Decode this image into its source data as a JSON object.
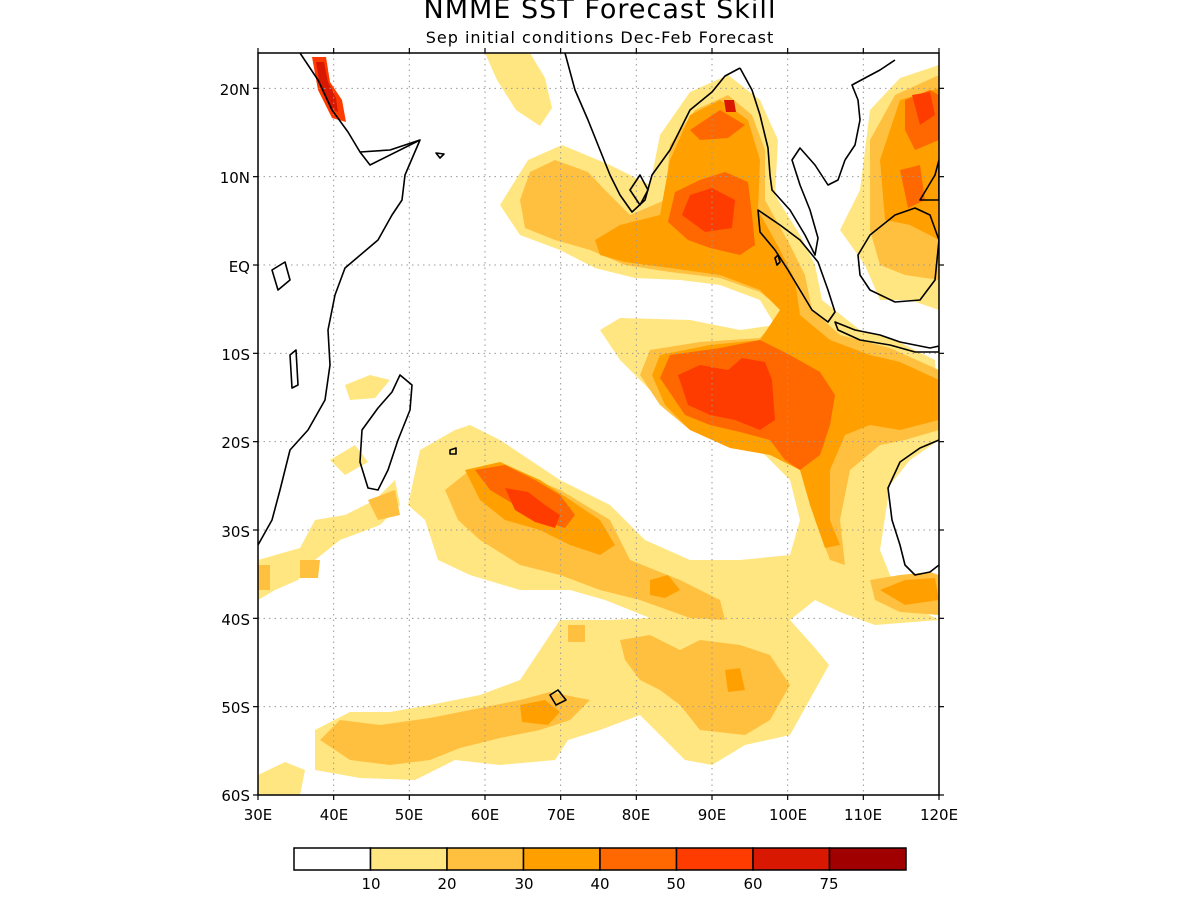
{
  "title": "NMME SST Forecast Skill",
  "subtitle": "Sep initial conditions  Dec-Feb Forecast",
  "axes": {
    "lat_labels": [
      "20N",
      "10N",
      "EQ",
      "10S",
      "20S",
      "30S",
      "40S",
      "50S",
      "60S"
    ],
    "lon_labels": [
      "30E",
      "40E",
      "50E",
      "60E",
      "70E",
      "80E",
      "90E",
      "100E",
      "110E",
      "120E"
    ],
    "lat_range": [
      -60,
      24
    ],
    "lon_range": [
      30,
      120
    ]
  },
  "colorbar": {
    "labels": [
      "10",
      "20",
      "30",
      "40",
      "50",
      "60",
      "75"
    ],
    "colors": [
      "#ffffff",
      "#ffe680",
      "#ffc040",
      "#ffa000",
      "#ff6800",
      "#ff3c00",
      "#d81800",
      "#a00000"
    ]
  },
  "colors": {
    "skill_10_20": "#ffe680",
    "skill_20_30": "#ffc040",
    "skill_30_40": "#ffa000",
    "skill_40_50": "#ff6800",
    "skill_50_60": "#ff3c00",
    "skill_60_75": "#d81800",
    "coastline": "#000000",
    "grid": "#9a9a9a"
  }
}
